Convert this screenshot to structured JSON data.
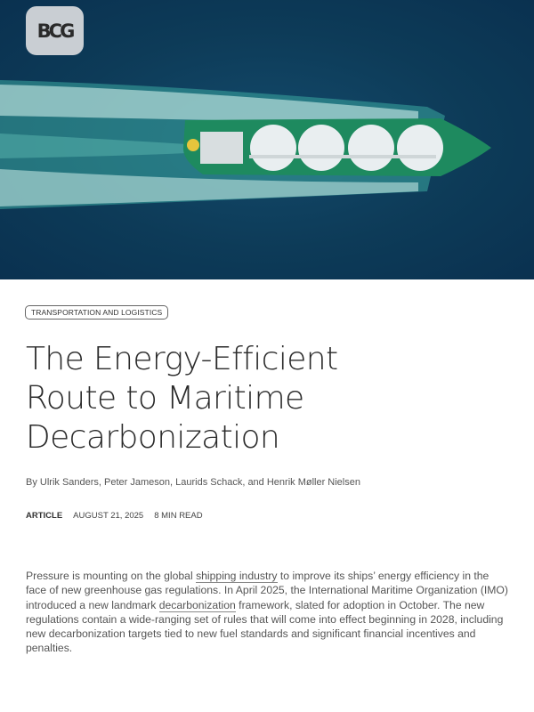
{
  "hero": {
    "logo_text": "BCG",
    "image_alt": "LNG carrier ship sailing on dark blue sea"
  },
  "article": {
    "category": "TRANSPORTATION AND LOGISTICS",
    "title_lines": [
      "The Energy-Efficient",
      "Route to Maritime",
      "Decarbonization"
    ],
    "byline": "By Ulrik Sanders, Peter Jameson, Laurids Schack, and Henrik Møller Nielsen",
    "type": "ARTICLE",
    "date": "AUGUST 21, 2025",
    "read_time": "8 MIN READ",
    "intro": {
      "part1": "Pressure is mounting on the global ",
      "link1": "shipping industry",
      "part2": " to improve its ships’ energy efficiency in the face of new greenhouse gas regulations. In April 2025, the International Maritime Organization (IMO) introduced a new landmark ",
      "link2": "decarbonization",
      "part3": " framework, slated for adoption in October. The new regulations contain a wide-ranging set of rules that will come into effect beginning in 2028, including new decarbonization targets tied to new fuel standards and significant financial incentives and penalties."
    }
  }
}
